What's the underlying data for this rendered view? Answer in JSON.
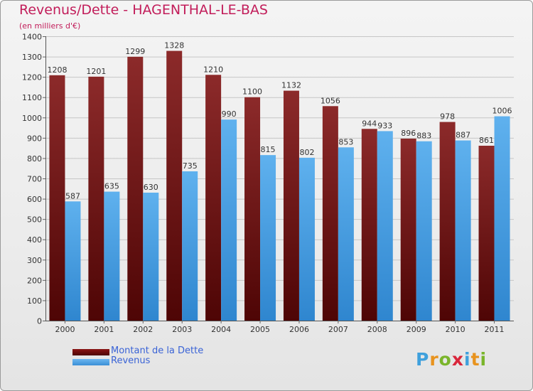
{
  "title": "Revenus/Dette - HAGENTHAL-LE-BAS",
  "subtitle": "(en milliers d'€)",
  "chart_data": {
    "type": "bar",
    "title": "Revenus/Dette - HAGENTHAL-LE-BAS",
    "ylabel": "(en milliers d'€)",
    "xlabel": "",
    "categories": [
      "2000",
      "2001",
      "2002",
      "2003",
      "2004",
      "2005",
      "2006",
      "2007",
      "2008",
      "2009",
      "2010",
      "2011"
    ],
    "series": [
      {
        "name": "Montant de la Dette",
        "color": "#6b0d0d",
        "values": [
          1208,
          1201,
          1299,
          1328,
          1210,
          1100,
          1132,
          1056,
          944,
          896,
          978,
          861
        ]
      },
      {
        "name": "Revenus",
        "color": "#4fa3e6",
        "values": [
          587,
          635,
          630,
          735,
          990,
          815,
          802,
          853,
          933,
          883,
          887,
          1006
        ]
      }
    ],
    "ylim": [
      0,
      1400
    ],
    "yticks": [
      0,
      100,
      200,
      300,
      400,
      500,
      600,
      700,
      800,
      900,
      1000,
      1100,
      1200,
      1300,
      1400
    ],
    "grid": true,
    "legend": "bottom-left"
  },
  "legend": {
    "dette": "Montant de la Dette",
    "revenus": "Revenus"
  },
  "logo": {
    "letters": [
      {
        "ch": "P",
        "color": "#3fa0dc"
      },
      {
        "ch": "r",
        "color": "#e8931e"
      },
      {
        "ch": "o",
        "color": "#7ab52b"
      },
      {
        "ch": "x",
        "color": "#d9263b"
      },
      {
        "ch": "i",
        "color": "#3fa0dc"
      },
      {
        "ch": "t",
        "color": "#e8931e"
      },
      {
        "ch": "i",
        "color": "#7ab52b"
      }
    ]
  }
}
